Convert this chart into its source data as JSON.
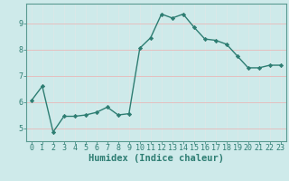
{
  "x": [
    0,
    1,
    2,
    3,
    4,
    5,
    6,
    7,
    8,
    9,
    10,
    11,
    12,
    13,
    14,
    15,
    16,
    17,
    18,
    19,
    20,
    21,
    22,
    23
  ],
  "y": [
    6.05,
    6.6,
    4.85,
    5.45,
    5.45,
    5.5,
    5.6,
    5.8,
    5.5,
    5.55,
    8.05,
    8.45,
    9.35,
    9.2,
    9.35,
    8.85,
    8.4,
    8.35,
    8.2,
    7.75,
    7.3,
    7.3,
    7.4,
    7.4
  ],
  "line_color": "#2d7d72",
  "marker": "D",
  "marker_size": 2.2,
  "background_color": "#ceeaea",
  "grid_color_major": "#e8b8b8",
  "grid_color_minor": "#dce8e8",
  "xlabel": "Humidex (Indice chaleur)",
  "xlim": [
    -0.5,
    23.5
  ],
  "ylim": [
    4.5,
    9.75
  ],
  "yticks": [
    5,
    6,
    7,
    8,
    9
  ],
  "xticks": [
    0,
    1,
    2,
    3,
    4,
    5,
    6,
    7,
    8,
    9,
    10,
    11,
    12,
    13,
    14,
    15,
    16,
    17,
    18,
    19,
    20,
    21,
    22,
    23
  ],
  "tick_color": "#2d7d72",
  "axis_color": "#5a9a90",
  "xlabel_fontsize": 7.5,
  "tick_fontsize": 6.0,
  "linewidth": 1.0
}
